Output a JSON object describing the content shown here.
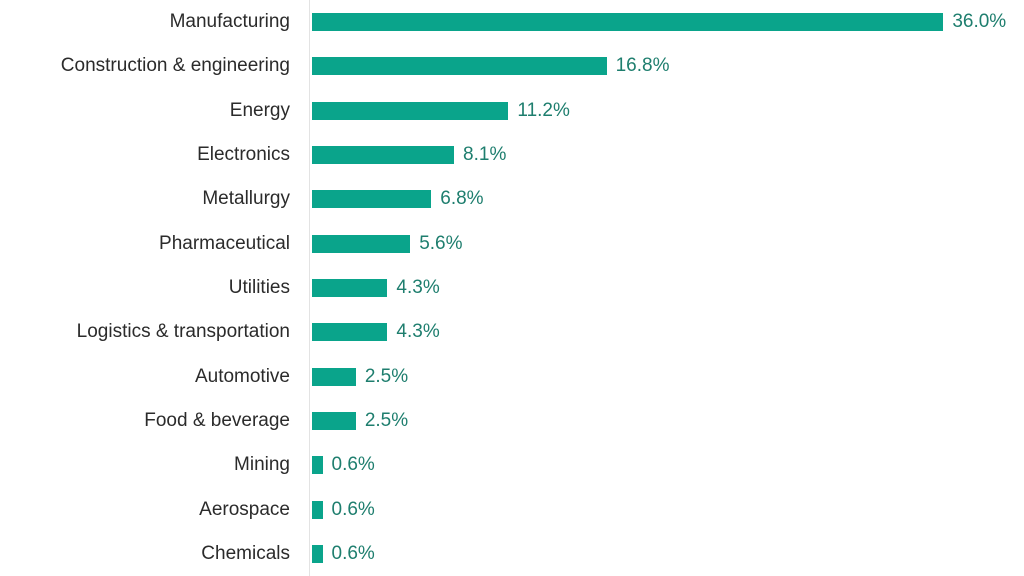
{
  "chart_data": {
    "type": "bar",
    "orientation": "horizontal",
    "title": "",
    "xlabel": "",
    "ylabel": "",
    "categories": [
      "Manufacturing",
      "Construction & engineering",
      "Energy",
      "Electronics",
      "Metallurgy",
      "Pharmaceutical",
      "Utilities",
      "Logistics & transportation",
      "Automotive",
      "Food & beverage",
      "Mining",
      "Aerospace",
      "Chemicals"
    ],
    "values": [
      36.0,
      16.8,
      11.2,
      8.1,
      6.8,
      5.6,
      4.3,
      4.3,
      2.5,
      2.5,
      0.6,
      0.6,
      0.6
    ],
    "value_labels": [
      "36.0%",
      "16.8%",
      "11.2%",
      "8.1%",
      "6.8%",
      "5.6%",
      "4.3%",
      "4.3%",
      "2.5%",
      "2.5%",
      "0.6%",
      "0.6%",
      "0.6%"
    ],
    "xlim": [
      0,
      40.6
    ],
    "grid": false,
    "legend": false,
    "bar_color": "#0aa48b",
    "value_label_color": "#1e7e6e",
    "category_label_color": "#2b2b2b",
    "axis_line_color": "#e3e3e3"
  }
}
